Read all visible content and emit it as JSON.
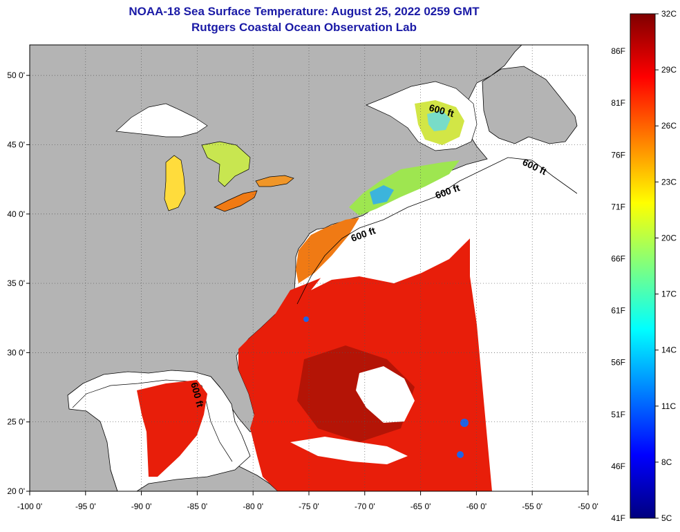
{
  "header": {
    "title": "NOAA-18 Sea Surface Temperature:  August 25, 2022 0259 GMT",
    "subtitle": "Rutgers Coastal Ocean Observation Lab"
  },
  "map": {
    "lon_range": [
      -100,
      -50
    ],
    "lat_range": [
      20,
      52.2
    ],
    "x_ticks": [
      {
        "lon": -100,
        "label": "-100 0'"
      },
      {
        "lon": -95,
        "label": "-95 0'"
      },
      {
        "lon": -90,
        "label": "-90 0'"
      },
      {
        "lon": -85,
        "label": "-85 0'"
      },
      {
        "lon": -80,
        "label": "-80 0'"
      },
      {
        "lon": -75,
        "label": "-75 0'"
      },
      {
        "lon": -70,
        "label": "-70 0'"
      },
      {
        "lon": -65,
        "label": "-65 0'"
      },
      {
        "lon": -60,
        "label": "-60 0'"
      },
      {
        "lon": -55,
        "label": "-55 0'"
      },
      {
        "lon": -50,
        "label": "-50 0'"
      }
    ],
    "y_ticks": [
      {
        "lat": 50,
        "label": "50 0'"
      },
      {
        "lat": 45,
        "label": "45 0'"
      },
      {
        "lat": 40,
        "label": "40 0'"
      },
      {
        "lat": 35,
        "label": "35 0'"
      },
      {
        "lat": 30,
        "label": "30 0'"
      },
      {
        "lat": 25,
        "label": "25 0'"
      },
      {
        "lat": 20,
        "label": "20 0'"
      }
    ],
    "grid": "dotted",
    "isobath_label": "600 ft",
    "colors": {
      "land": "#b4b4b4",
      "cloud": "#ffffff",
      "coast": "#000000",
      "gulf_stream": "#e81e0a",
      "shelf": "#f07a14",
      "nearshore": "#ffd21e",
      "cold": "#1e64e6"
    }
  },
  "colorbar": {
    "range_c": [
      5,
      32
    ],
    "celsius_labels": [
      "32C",
      "29C",
      "26C",
      "23C",
      "20C",
      "17C",
      "14C",
      "11C",
      "8C",
      "5C"
    ],
    "fahrenheit_labels": [
      "86F",
      "81F",
      "76F",
      "71F",
      "66F",
      "61F",
      "56F",
      "51F",
      "46F",
      "41F"
    ]
  }
}
